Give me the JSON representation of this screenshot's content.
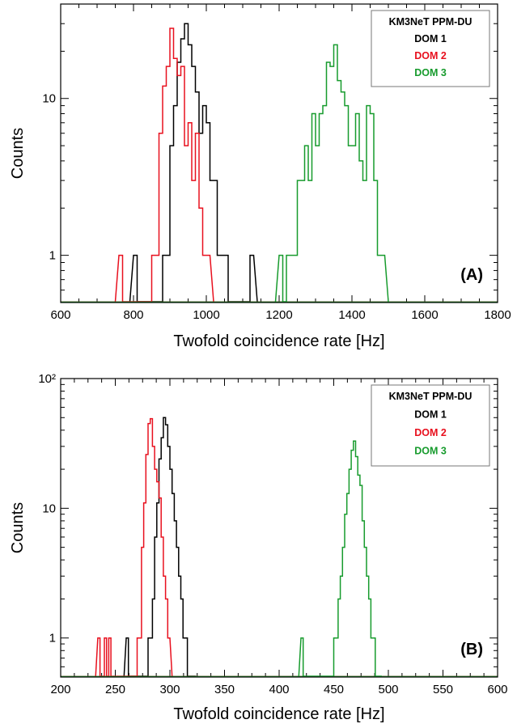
{
  "chart_data": [
    {
      "type": "histogram",
      "panel_label": "(A)",
      "xlabel": "Twofold coincidence rate [Hz]",
      "ylabel": "Counts",
      "xlim": [
        600,
        1800
      ],
      "ylim": [
        0.5,
        40
      ],
      "yscale": "log",
      "x_ticks": [
        600,
        800,
        1000,
        1200,
        1400,
        1600,
        1800
      ],
      "y_ticks": [
        {
          "value": 1,
          "label": "1"
        },
        {
          "value": 10,
          "label": "10"
        }
      ],
      "bin_width": 10,
      "legend": {
        "title": "KM3NeT PPM-DU",
        "position": "top-right"
      },
      "series": [
        {
          "name": "DOM 1",
          "color": "#000000",
          "start": 800,
          "counts": [
            1,
            0,
            0,
            0,
            0,
            0,
            0,
            0,
            1,
            1,
            5,
            9,
            17,
            24,
            30,
            22,
            16,
            11,
            6,
            9,
            7,
            3,
            3,
            1,
            1,
            1,
            0,
            0,
            0,
            0,
            0,
            0,
            1
          ]
        },
        {
          "name": "DOM 2",
          "color": "#e8101e",
          "start": 760,
          "counts": [
            1,
            0,
            0,
            0,
            0,
            0,
            0,
            0,
            0,
            1,
            1,
            6,
            12,
            16,
            28,
            18,
            14,
            16,
            5,
            7,
            3,
            6,
            2,
            1,
            1
          ]
        },
        {
          "name": "DOM 3",
          "color": "#179b2d",
          "start": 1200,
          "counts": [
            1,
            0,
            1,
            1,
            1,
            3,
            3,
            5,
            3,
            8,
            5,
            8,
            9,
            17,
            16,
            22,
            13,
            11,
            9,
            5,
            5,
            8,
            4,
            3,
            9,
            8,
            3,
            1,
            1
          ]
        }
      ]
    },
    {
      "type": "histogram",
      "panel_label": "(B)",
      "xlabel": "Twofold coincidence rate [Hz]",
      "ylabel": "Counts",
      "xlim": [
        200,
        600
      ],
      "ylim": [
        0.5,
        100
      ],
      "yscale": "log",
      "x_ticks": [
        200,
        250,
        300,
        350,
        400,
        450,
        500,
        550,
        600
      ],
      "y_ticks": [
        {
          "value": 1,
          "label": "1"
        },
        {
          "value": 10,
          "label": "10"
        },
        {
          "value": 100,
          "label": "10²"
        }
      ],
      "bin_width": 2,
      "legend": {
        "title": "KM3NeT PPM-DU",
        "position": "top-right"
      },
      "series": [
        {
          "name": "DOM 1",
          "color": "#000000",
          "start": 260,
          "counts": [
            1,
            0,
            0,
            0,
            0,
            0,
            0,
            0,
            0,
            0,
            1,
            1,
            2,
            6,
            11,
            24,
            35,
            50,
            44,
            30,
            20,
            13,
            8,
            5,
            3,
            2,
            1,
            1,
            0,
            0,
            0
          ]
        },
        {
          "name": "DOM 2",
          "color": "#e8101e",
          "start": 234,
          "counts": [
            1,
            0,
            0,
            1,
            0,
            1,
            0,
            0,
            0,
            0,
            0,
            0,
            0,
            0,
            0,
            0,
            0,
            0,
            1,
            1,
            5,
            11,
            26,
            45,
            49,
            30,
            20,
            16,
            12,
            6,
            3,
            2,
            1
          ]
        },
        {
          "name": "DOM 3",
          "color": "#179b2d",
          "start": 420,
          "counts": [
            1,
            0,
            0,
            0,
            0,
            0,
            0,
            0,
            0,
            0,
            0,
            0,
            0,
            0,
            0,
            1,
            1,
            2,
            3,
            5,
            9,
            13,
            20,
            28,
            33,
            25,
            18,
            15,
            8,
            5,
            3,
            2,
            1,
            1,
            0,
            0
          ]
        }
      ]
    }
  ]
}
